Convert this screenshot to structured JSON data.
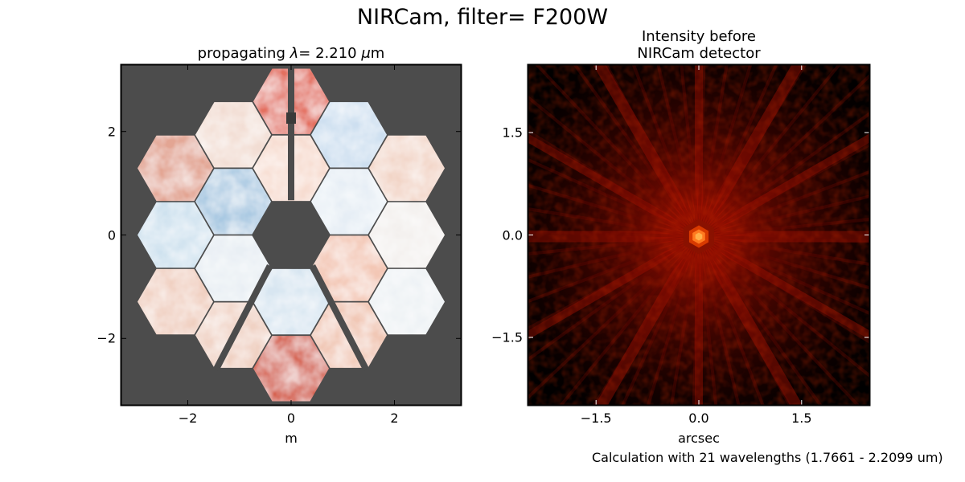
{
  "suptitle": "NIRCam, filter= F200W",
  "footnote": "Calculation with 21 wavelengths (1.7661 - 2.2099 um)",
  "chart_data": [
    {
      "type": "heatmap",
      "title_prefix": "propagating ",
      "title_lambda": "λ",
      "title_mid": "= 2.210 ",
      "title_mu": "μ",
      "title_suffix": "m",
      "xlabel": "m",
      "ylabel": "",
      "xlim": [
        -3.3,
        3.3
      ],
      "ylim": [
        -3.3,
        3.3
      ],
      "xticks": [
        {
          "v": -2,
          "label": "−2"
        },
        {
          "v": 0,
          "label": "0"
        },
        {
          "v": 2,
          "label": "2"
        }
      ],
      "yticks": [
        {
          "v": 2,
          "label": "2"
        },
        {
          "v": 0,
          "label": "0"
        },
        {
          "v": -2,
          "label": "−2"
        }
      ],
      "content": "wavefront phase over 18 hexagonal mirror segments with secondary-mirror support struts",
      "colormap": "RdBu_r",
      "background_color": "#4c4c4c",
      "segment_colors": {
        "A1": "#f7dcd0",
        "A2": "#e6eef5",
        "A3": "#f3c7b5",
        "A4": "#d8e6f1",
        "A5": "#e9eff4",
        "A6": "#a9c9e2",
        "B1": "#cddff0",
        "B2": "#f3f0ee",
        "B3": "#f1c8b6",
        "B4": "#f0d2c4",
        "B5": "#cfe2ef",
        "B6": "#f2ddd3",
        "C1": "#e46f5f",
        "C2": "#f2d5c7",
        "C3": "#eef2f5",
        "C4": "#d6624f",
        "C5": "#f0cfc0",
        "C6": "#e3a593"
      }
    },
    {
      "type": "heatmap",
      "title_line1": "Intensity before",
      "title_line2": "NIRCam detector",
      "xlabel": "arcsec",
      "ylabel": "",
      "xlim": [
        -2.5,
        2.5
      ],
      "ylim": [
        -2.5,
        2.5
      ],
      "xticks": [
        {
          "v": -1.5,
          "label": "−1.5"
        },
        {
          "v": 0,
          "label": "0.0"
        },
        {
          "v": 1.5,
          "label": "1.5"
        }
      ],
      "yticks": [
        {
          "v": 1.5,
          "label": "1.5"
        },
        {
          "v": 0,
          "label": "0.0"
        },
        {
          "v": -1.5,
          "label": "−1.5"
        }
      ],
      "content": "point spread function with bright hexagonal core and radial spikes",
      "colormap": "hot (log stretch)",
      "peak_color": "#ffb04a",
      "background_color": "#000000"
    }
  ]
}
